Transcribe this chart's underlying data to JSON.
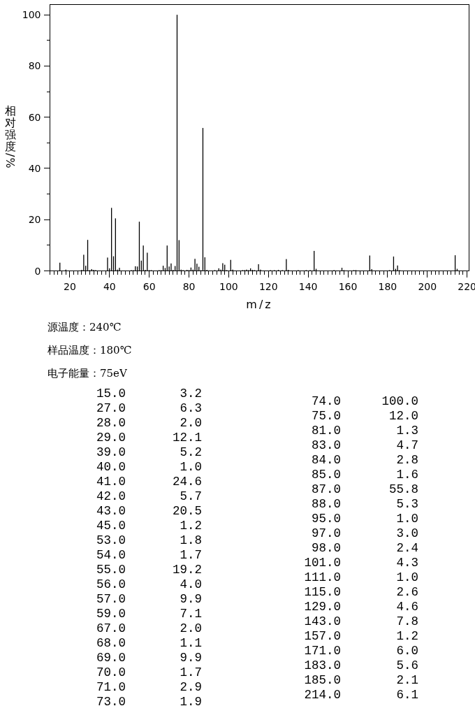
{
  "chart_data": [
    {
      "type": "bar",
      "color": "#000000",
      "x": [
        15,
        18,
        26,
        27,
        28,
        29,
        30,
        31,
        32,
        33,
        39,
        40,
        41,
        42,
        43,
        44,
        45,
        51,
        52,
        53,
        54,
        55,
        56,
        57,
        58,
        59,
        60,
        61,
        65,
        66,
        67,
        68,
        69,
        70,
        71,
        72,
        73,
        74,
        75,
        76,
        77,
        79,
        80,
        81,
        82,
        83,
        84,
        85,
        86,
        87,
        88,
        89,
        93,
        95,
        96,
        97,
        98,
        99,
        101,
        102,
        107,
        108,
        109,
        110,
        111,
        112,
        113,
        115,
        116,
        121,
        123,
        125,
        127,
        129,
        130,
        135,
        139,
        141,
        143,
        144,
        153,
        157,
        158,
        163,
        164,
        171,
        172,
        181,
        183,
        184,
        185,
        186,
        214,
        215
      ],
      "values": [
        3.2,
        0.5,
        0.4,
        6.3,
        2.0,
        12.1,
        0.3,
        0.7,
        0.4,
        0.3,
        5.2,
        1.0,
        24.6,
        5.7,
        20.5,
        0.5,
        1.2,
        0.3,
        0.3,
        1.8,
        1.7,
        19.2,
        4.0,
        9.9,
        0.4,
        7.1,
        0.3,
        0.3,
        0.3,
        0.3,
        2.0,
        1.1,
        9.9,
        1.7,
        2.9,
        0.4,
        1.9,
        100.0,
        12.0,
        0.5,
        0.3,
        0.4,
        0.3,
        1.3,
        0.5,
        4.7,
        2.8,
        1.6,
        0.3,
        55.8,
        5.3,
        0.4,
        0.3,
        1.0,
        0.5,
        3.0,
        2.4,
        0.3,
        4.3,
        0.5,
        0.3,
        0.3,
        0.5,
        0.3,
        1.0,
        0.4,
        0.3,
        2.6,
        0.5,
        0.3,
        0.3,
        0.4,
        0.3,
        4.6,
        0.4,
        0.3,
        0.3,
        0.3,
        7.8,
        0.8,
        0.3,
        1.2,
        0.3,
        0.3,
        0.3,
        6.0,
        0.7,
        0.3,
        5.6,
        0.8,
        2.1,
        0.3,
        6.1,
        0.8
      ],
      "xlim": [
        10,
        221
      ],
      "ylim": [
        0,
        104
      ],
      "xticks": [
        {
          "value": 10,
          "label": null
        },
        {
          "value": 12,
          "label": null
        },
        {
          "value": 14,
          "label": null
        },
        {
          "value": 16,
          "label": null
        },
        {
          "value": 18,
          "label": null
        },
        20,
        {
          "value": 22,
          "label": null
        },
        {
          "value": 24,
          "label": null
        },
        {
          "value": 26,
          "label": null
        },
        {
          "value": 28,
          "label": null
        },
        {
          "value": 30,
          "label": null
        },
        {
          "value": 32,
          "label": null
        },
        {
          "value": 34,
          "label": null
        },
        {
          "value": 36,
          "label": null
        },
        {
          "value": 38,
          "label": null
        },
        40,
        {
          "value": 42,
          "label": null
        },
        {
          "value": 44,
          "label": null
        },
        {
          "value": 46,
          "label": null
        },
        {
          "value": 48,
          "label": null
        },
        {
          "value": 50,
          "label": null
        },
        {
          "value": 52,
          "label": null
        },
        {
          "value": 54,
          "label": null
        },
        {
          "value": 56,
          "label": null
        },
        {
          "value": 58,
          "label": null
        },
        60,
        {
          "value": 62,
          "label": null
        },
        {
          "value": 64,
          "label": null
        },
        {
          "value": 66,
          "label": null
        },
        {
          "value": 68,
          "label": null
        },
        {
          "value": 70,
          "label": null
        },
        {
          "value": 72,
          "label": null
        },
        {
          "value": 74,
          "label": null
        },
        {
          "value": 76,
          "label": null
        },
        {
          "value": 78,
          "label": null
        },
        80,
        {
          "value": 82,
          "label": null
        },
        {
          "value": 84,
          "label": null
        },
        {
          "value": 86,
          "label": null
        },
        {
          "value": 88,
          "label": null
        },
        {
          "value": 90,
          "label": null
        },
        {
          "value": 92,
          "label": null
        },
        {
          "value": 94,
          "label": null
        },
        {
          "value": 96,
          "label": null
        },
        {
          "value": 98,
          "label": null
        },
        100,
        {
          "value": 102,
          "label": null
        },
        {
          "value": 104,
          "label": null
        },
        {
          "value": 106,
          "label": null
        },
        {
          "value": 108,
          "label": null
        },
        {
          "value": 110,
          "label": null
        },
        {
          "value": 112,
          "label": null
        },
        {
          "value": 114,
          "label": null
        },
        {
          "value": 116,
          "label": null
        },
        {
          "value": 118,
          "label": null
        },
        120,
        {
          "value": 122,
          "label": null
        },
        {
          "value": 124,
          "label": null
        },
        {
          "value": 126,
          "label": null
        },
        {
          "value": 128,
          "label": null
        },
        {
          "value": 130,
          "label": null
        },
        {
          "value": 132,
          "label": null
        },
        {
          "value": 134,
          "label": null
        },
        {
          "value": 136,
          "label": null
        },
        {
          "value": 138,
          "label": null
        },
        140,
        {
          "value": 142,
          "label": null
        },
        {
          "value": 144,
          "label": null
        },
        {
          "value": 146,
          "label": null
        },
        {
          "value": 148,
          "label": null
        },
        {
          "value": 150,
          "label": null
        },
        {
          "value": 152,
          "label": null
        },
        {
          "value": 154,
          "label": null
        },
        {
          "value": 156,
          "label": null
        },
        {
          "value": 158,
          "label": null
        },
        160,
        {
          "value": 162,
          "label": null
        },
        {
          "value": 164,
          "label": null
        },
        {
          "value": 166,
          "label": null
        },
        {
          "value": 168,
          "label": null
        },
        {
          "value": 170,
          "label": null
        },
        {
          "value": 172,
          "label": null
        },
        {
          "value": 174,
          "label": null
        },
        {
          "value": 176,
          "label": null
        },
        {
          "value": 178,
          "label": null
        },
        180,
        {
          "value": 182,
          "label": null
        },
        {
          "value": 184,
          "label": null
        },
        {
          "value": 186,
          "label": null
        },
        {
          "value": 188,
          "label": null
        },
        {
          "value": 190,
          "label": null
        },
        {
          "value": 192,
          "label": null
        },
        {
          "value": 194,
          "label": null
        },
        {
          "value": 196,
          "label": null
        },
        {
          "value": 198,
          "label": null
        },
        200,
        {
          "value": 202,
          "label": null
        },
        {
          "value": 204,
          "label": null
        },
        {
          "value": 206,
          "label": null
        },
        {
          "value": 208,
          "label": null
        },
        {
          "value": 210,
          "label": null
        },
        {
          "value": 212,
          "label": null
        },
        {
          "value": 214,
          "label": null
        },
        {
          "value": 216,
          "label": null
        },
        {
          "value": 218,
          "label": null
        },
        220
      ],
      "yticks": [
        0,
        {
          "value": 10,
          "label": null
        },
        20,
        {
          "value": 30,
          "label": null
        },
        40,
        {
          "value": 50,
          "label": null
        },
        60,
        {
          "value": 70,
          "label": null
        },
        80,
        {
          "value": 90,
          "label": null
        },
        100
      ],
      "xlabel": "m/z",
      "ylabel": "相对强度/%",
      "annotations": [
        "源温度：240℃",
        "样品温度：180℃",
        "电子能量：75eV"
      ]
    },
    {
      "type": "other",
      "categories": [
        "15.0",
        "27.0",
        "28.0",
        "29.0",
        "39.0",
        "40.0",
        "41.0",
        "42.0",
        "43.0",
        "45.0",
        "53.0",
        "54.0",
        "55.0",
        "56.0",
        "57.0",
        "59.0",
        "67.0",
        "68.0",
        "69.0",
        "70.0",
        "71.0",
        "73.0",
        "74.0",
        "75.0",
        "81.0",
        "83.0",
        "84.0",
        "85.0",
        "87.0",
        "88.0",
        "95.0",
        "97.0",
        "98.0",
        "101.0",
        "111.0",
        "115.0",
        "129.0",
        "143.0",
        "157.0",
        "171.0",
        "183.0",
        "185.0",
        "214.0"
      ],
      "values": [
        3.2,
        6.3,
        2.0,
        12.1,
        5.2,
        1.0,
        24.6,
        5.7,
        20.5,
        1.2,
        1.8,
        1.7,
        19.2,
        4.0,
        9.9,
        7.1,
        2.0,
        1.1,
        9.9,
        1.7,
        2.9,
        1.9,
        100.0,
        12.0,
        1.3,
        4.7,
        2.8,
        1.6,
        55.8,
        5.3,
        1.0,
        3.0,
        2.4,
        4.3,
        1.0,
        2.6,
        4.6,
        7.8,
        1.2,
        6.0,
        5.6,
        2.1,
        6.1
      ],
      "value_labels": [
        "3.2",
        "6.3",
        "2.0",
        "12.1",
        "5.2",
        "1.0",
        "24.6",
        "5.7",
        "20.5",
        "1.2",
        "1.8",
        "1.7",
        "19.2",
        "4.0",
        "9.9",
        "7.1",
        "2.0",
        "1.1",
        "9.9",
        "1.7",
        "2.9",
        "1.9",
        "100.0",
        "12.0",
        "1.3",
        "4.7",
        "2.8",
        "1.6",
        "55.8",
        "5.3",
        "1.0",
        "3.0",
        "2.4",
        "4.3",
        "1.0",
        "2.6",
        "4.6",
        "7.8",
        "1.2",
        "6.0",
        "5.6",
        "2.1",
        "6.1"
      ]
    }
  ]
}
